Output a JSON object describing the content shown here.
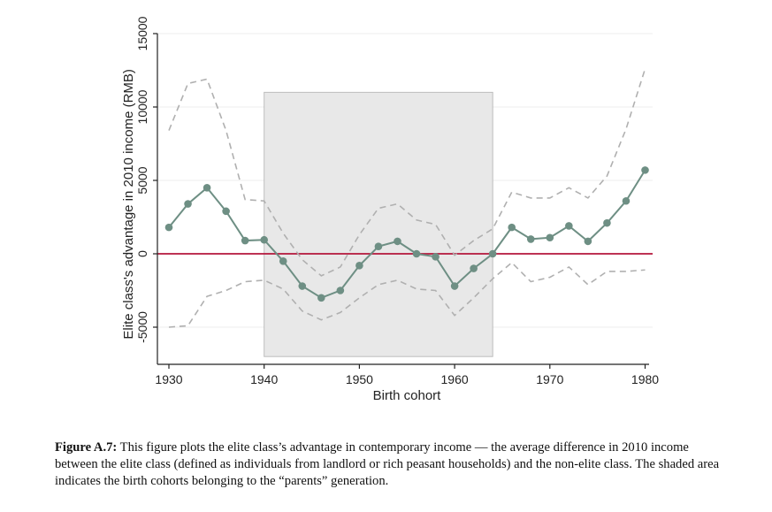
{
  "chart_data": {
    "type": "line",
    "xlabel": "Birth cohort",
    "ylabel": "Elite class's advantage in 2010 income (RMB)",
    "xlim": [
      1929,
      1981
    ],
    "ylim": [
      -7500,
      15500
    ],
    "x_ticks": [
      "1930",
      "1940",
      "1950",
      "1960",
      "1970",
      "1980"
    ],
    "y_ticks": [
      "-5000",
      "0",
      "5000",
      "10000",
      "15000"
    ],
    "grid": true,
    "reference_line": 0,
    "shaded_region": {
      "x": [
        1940,
        1964
      ],
      "y": [
        -7000,
        11000
      ]
    },
    "x": [
      1930,
      1932,
      1934,
      1936,
      1938,
      1940,
      1942,
      1944,
      1946,
      1948,
      1950,
      1952,
      1954,
      1956,
      1958,
      1960,
      1962,
      1964,
      1966,
      1968,
      1970,
      1972,
      1974,
      1976,
      1978,
      1980
    ],
    "series": [
      {
        "values": [
          1800,
          3400,
          4500,
          2900,
          900,
          950,
          -500,
          -2200,
          -3000,
          -2500,
          -800,
          500,
          850,
          0,
          -200,
          -2200,
          -1000,
          0,
          1800,
          1000,
          1100,
          1900,
          850,
          2100,
          3600,
          5700
        ]
      },
      {
        "values": [
          8400,
          11600,
          11900,
          8400,
          3700,
          3600,
          1400,
          -400,
          -1500,
          -900,
          1300,
          3100,
          3400,
          2300,
          2000,
          -100,
          900,
          1700,
          4200,
          3800,
          3800,
          4500,
          3800,
          5300,
          8500,
          12600
        ]
      },
      {
        "values": [
          -5000,
          -4900,
          -2900,
          -2500,
          -1900,
          -1800,
          -2400,
          -3900,
          -4500,
          -4000,
          -3000,
          -2100,
          -1800,
          -2400,
          -2500,
          -4200,
          -3000,
          -1700,
          -600,
          -1900,
          -1600,
          -900,
          -2100,
          -1200,
          -1200,
          -1100
        ]
      }
    ]
  },
  "caption": {
    "label": "Figure A.7:",
    "text": " This figure plots the elite class’s advantage in contemporary income — the average difference in 2010 income between the elite class (defined as individuals from landlord or rich peasant households) and the non-elite class. The shaded area indicates the birth cohorts belonging to the “parents” generation."
  },
  "colors": {
    "estimate": "#6e8f84",
    "ci": "#b0b0b0",
    "zero_line": "#b5163b",
    "shade_fill": "#e8e8e8",
    "shade_stroke": "#bdbdbd",
    "grid": "#ececec"
  }
}
